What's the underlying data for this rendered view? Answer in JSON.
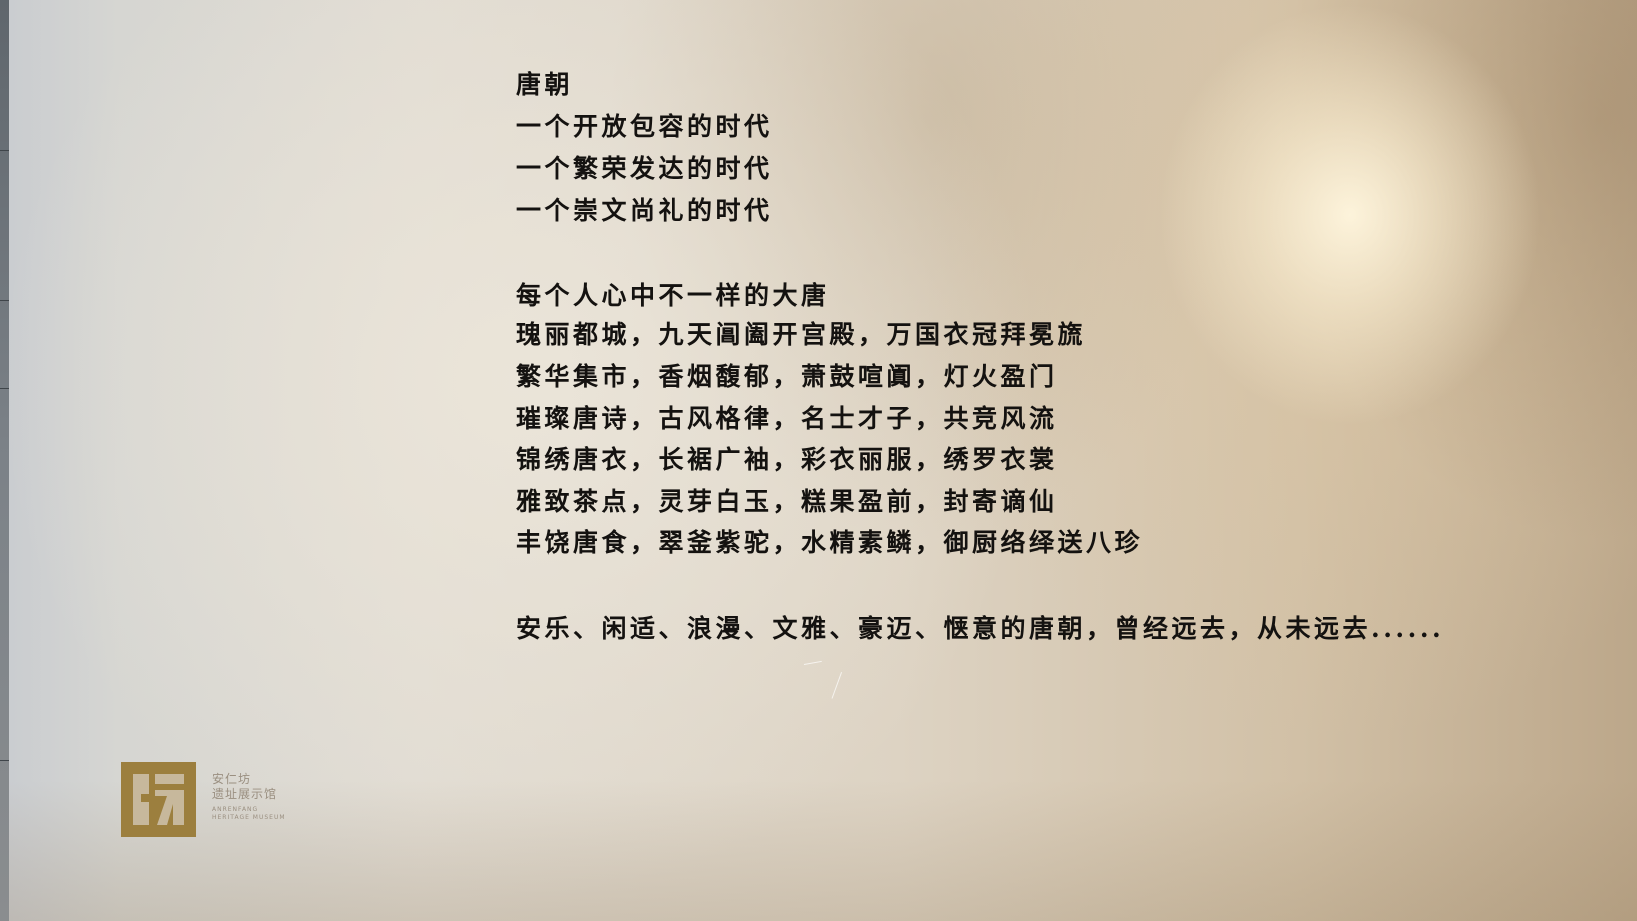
{
  "wall_text": {
    "heading": "唐朝",
    "intro_lines": [
      "一个开放包容的时代",
      "一个繁荣发达的时代",
      "一个崇文尚礼的时代"
    ],
    "subheading": "每个人心中不一样的大唐",
    "verse_lines": [
      "瑰丽都城，九天阊阖开宫殿，万国衣冠拜冕旒",
      "繁华集市，香烟馥郁，萧鼓喧阗，灯火盈门",
      "璀璨唐诗，古风格律，名士才子，共竞风流",
      "锦绣唐衣，长裾广袖，彩衣丽服，绣罗衣裳",
      "雅致茶点，灵芽白玉，糕果盈前，封寄谪仙",
      "丰饶唐食，翠釜紫驼，水精素鳞，御厨络绎送八珍"
    ],
    "closing": "安乐、闲适、浪漫、文雅、豪迈、惬意的唐朝，曾经远去，从未远去......"
  },
  "museum_logo": {
    "name_line1": "安仁坊",
    "name_line2": "遗址展示馆",
    "english_line1": "ANRENFANG",
    "english_line2": "HERITAGE MUSEUM",
    "logo_color": "#9c7f3e"
  },
  "colors": {
    "text": "#141210",
    "wall_left": "#d6d6d2",
    "wall_right": "#bca78a",
    "spotlight": "#fff6de"
  }
}
